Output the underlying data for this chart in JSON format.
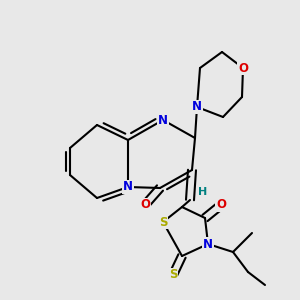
{
  "bg_color": "#e8e8e8",
  "bond_color": "#000000",
  "lw": 1.5,
  "atom_colors": {
    "N": "#0000dd",
    "O": "#dd0000",
    "S": "#aaaa00",
    "H": "#008080"
  },
  "fig_size": [
    3.0,
    3.0
  ],
  "dpi": 100,
  "xlim": [
    0,
    300
  ],
  "ylim": [
    0,
    300
  ]
}
